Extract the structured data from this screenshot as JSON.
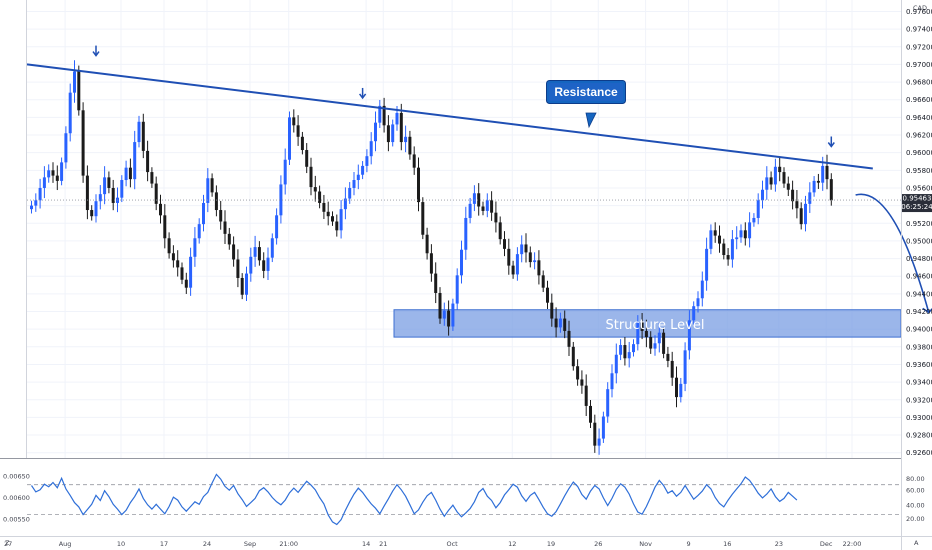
{
  "colors": {
    "bull": "#2962ff",
    "bear": "#1b1b1b",
    "resistance_line": "#1f4fb4",
    "zone_fill": "#7a9ee3",
    "osc_line": "#2f6fd8",
    "grid": "#f0f3fa",
    "axis_text": "#131722",
    "price_tag_bg": "#2a2e39"
  },
  "axis": {
    "currency": "CAD",
    "x_labels": [
      "27",
      "Aug",
      "10",
      "17",
      "24",
      "Sep",
      "21:00",
      "14",
      "21",
      "Oct",
      "12",
      "19",
      "26",
      "Nov",
      "9",
      "16",
      "23",
      "Dec",
      "22:00"
    ],
    "y_labels": [
      "0.97600",
      "0.97400",
      "0.97200",
      "0.97000",
      "0.96800",
      "0.96600",
      "0.96400",
      "0.96200",
      "0.96000",
      "0.95800",
      "0.95600",
      "0.95400",
      "0.95200",
      "0.95000",
      "0.94800",
      "0.94600",
      "0.94400",
      "0.94200",
      "0.94000",
      "0.93800",
      "0.93600",
      "0.93400",
      "0.93200",
      "0.93000",
      "0.92800",
      "0.92600"
    ],
    "osc_left_labels": [
      "0.00650",
      "0.00600",
      "0.00550"
    ],
    "osc_right_labels": [
      "80.00",
      "60.00",
      "40.00",
      "20.00"
    ],
    "corner_left": "Z",
    "corner_right": "A"
  },
  "price_tag": {
    "price": "0.95463",
    "countdown": "06:25:24"
  },
  "annotations": {
    "resistance": "Resistance",
    "structure": "Structure Level"
  },
  "chart_data": [
    {
      "type": "candlestick",
      "title": "",
      "ylim": [
        0.9254,
        0.9773
      ],
      "resistance_line": {
        "from": [
          0,
          0.97
        ],
        "to": [
          196,
          0.9582
        ]
      },
      "structure_zone": [
        0.9391,
        0.9422
      ],
      "last_price": 0.95463,
      "close_path": [
        0.954,
        0.9546,
        0.956,
        0.9572,
        0.958,
        0.9574,
        0.9568,
        0.9589,
        0.9622,
        0.9668,
        0.9692,
        0.9648,
        0.9574,
        0.9535,
        0.9528,
        0.9545,
        0.9553,
        0.9572,
        0.956,
        0.9543,
        0.9549,
        0.9569,
        0.9583,
        0.957,
        0.9612,
        0.9635,
        0.9602,
        0.9578,
        0.9565,
        0.9542,
        0.9529,
        0.9503,
        0.9486,
        0.9478,
        0.947,
        0.9456,
        0.9447,
        0.9482,
        0.9503,
        0.9519,
        0.9543,
        0.9571,
        0.9555,
        0.9535,
        0.9522,
        0.9508,
        0.9496,
        0.9479,
        0.9458,
        0.9439,
        0.9463,
        0.9482,
        0.9493,
        0.9478,
        0.9466,
        0.9481,
        0.9503,
        0.9529,
        0.9564,
        0.9592,
        0.964,
        0.9631,
        0.9618,
        0.9603,
        0.9584,
        0.9561,
        0.9556,
        0.9543,
        0.9533,
        0.9528,
        0.9522,
        0.9512,
        0.9536,
        0.9548,
        0.956,
        0.9569,
        0.9575,
        0.9585,
        0.9596,
        0.9613,
        0.9634,
        0.9653,
        0.9631,
        0.9612,
        0.9632,
        0.9645,
        0.9612,
        0.9618,
        0.9598,
        0.9583,
        0.9544,
        0.9507,
        0.9486,
        0.9463,
        0.9441,
        0.9412,
        0.9421,
        0.9403,
        0.9429,
        0.9461,
        0.949,
        0.9526,
        0.9542,
        0.9554,
        0.9539,
        0.9534,
        0.9546,
        0.9532,
        0.9521,
        0.9502,
        0.9491,
        0.9472,
        0.9462,
        0.9485,
        0.9496,
        0.9487,
        0.9476,
        0.9478,
        0.9461,
        0.9447,
        0.943,
        0.9412,
        0.9402,
        0.9412,
        0.9398,
        0.938,
        0.9358,
        0.9343,
        0.9336,
        0.9313,
        0.9294,
        0.9268,
        0.9276,
        0.9301,
        0.9332,
        0.935,
        0.9371,
        0.9382,
        0.9367,
        0.9374,
        0.9383,
        0.9408,
        0.9398,
        0.9391,
        0.9378,
        0.9384,
        0.9396,
        0.9372,
        0.9364,
        0.9345,
        0.9323,
        0.9338,
        0.9376,
        0.941,
        0.9426,
        0.9435,
        0.9455,
        0.9491,
        0.9512,
        0.9506,
        0.9497,
        0.9484,
        0.9479,
        0.9502,
        0.9504,
        0.9512,
        0.9503,
        0.9521,
        0.9526,
        0.9546,
        0.9558,
        0.9572,
        0.9564,
        0.9584,
        0.9578,
        0.9565,
        0.9558,
        0.9545,
        0.9537,
        0.9519,
        0.9542,
        0.9555,
        0.9568,
        0.9566,
        0.9585,
        0.957,
        0.9546
      ],
      "markers": [
        {
          "x": 15,
          "price": 0.971
        },
        {
          "x": 77,
          "price": 0.9662
        },
        {
          "x": 186,
          "price": 0.9607
        }
      ],
      "forecast_arrow": {
        "from": [
          192,
          0.9552
        ],
        "to": [
          209,
          0.9419
        ]
      }
    },
    {
      "type": "line",
      "title": "",
      "ylim": [
        0.0051,
        0.0069
      ],
      "levels": [
        0.0063,
        0.0056
      ],
      "values": [
        0.00628,
        0.00613,
        0.00618,
        0.00631,
        0.00625,
        0.00635,
        0.00623,
        0.00645,
        0.0062,
        0.00605,
        0.00588,
        0.00578,
        0.0056,
        0.00572,
        0.00584,
        0.00605,
        0.00593,
        0.00616,
        0.00602,
        0.00584,
        0.00573,
        0.0056,
        0.0057,
        0.00588,
        0.00602,
        0.0062,
        0.00598,
        0.00583,
        0.00573,
        0.00584,
        0.00573,
        0.00562,
        0.00579,
        0.00601,
        0.00594,
        0.00578,
        0.00568,
        0.00579,
        0.0059,
        0.00584,
        0.00602,
        0.00612,
        0.00634,
        0.00654,
        0.00643,
        0.00626,
        0.00617,
        0.00628,
        0.00609,
        0.00595,
        0.00579,
        0.00588,
        0.00598,
        0.00616,
        0.00623,
        0.00613,
        0.006,
        0.0059,
        0.00583,
        0.00594,
        0.00611,
        0.00622,
        0.00612,
        0.00625,
        0.00638,
        0.00629,
        0.00618,
        0.006,
        0.00585,
        0.00559,
        0.00543,
        0.00537,
        0.00548,
        0.0057,
        0.0059,
        0.00608,
        0.00622,
        0.00612,
        0.00598,
        0.00585,
        0.00575,
        0.00562,
        0.0058,
        0.00597,
        0.00615,
        0.0063,
        0.00618,
        0.00603,
        0.00583,
        0.00562,
        0.00571,
        0.00589,
        0.00604,
        0.00612,
        0.00594,
        0.00573,
        0.00556,
        0.0057,
        0.00582,
        0.00566,
        0.00555,
        0.00564,
        0.00574,
        0.0059,
        0.00612,
        0.00621,
        0.00603,
        0.00593,
        0.00576,
        0.00588,
        0.00606,
        0.00618,
        0.00631,
        0.00624,
        0.00604,
        0.00591,
        0.00605,
        0.00612,
        0.00595,
        0.00577,
        0.00562,
        0.00556,
        0.00567,
        0.00585,
        0.00604,
        0.00621,
        0.00636,
        0.00626,
        0.00607,
        0.00596,
        0.00615,
        0.00628,
        0.0062,
        0.00599,
        0.00581,
        0.00598,
        0.00619,
        0.00632,
        0.00624,
        0.00608,
        0.00585,
        0.00566,
        0.00561,
        0.00579,
        0.00601,
        0.00624,
        0.0064,
        0.00628,
        0.0061,
        0.00616,
        0.00603,
        0.00612,
        0.00628,
        0.00612,
        0.00596,
        0.00605,
        0.00615,
        0.0063,
        0.0062,
        0.006,
        0.00586,
        0.00578,
        0.00594,
        0.00608,
        0.0062,
        0.00632,
        0.00648,
        0.0064,
        0.00626,
        0.0061,
        0.00599,
        0.00608,
        0.0062,
        0.00602,
        0.00591,
        0.00598,
        0.00612,
        0.00603,
        0.00594
      ]
    }
  ]
}
